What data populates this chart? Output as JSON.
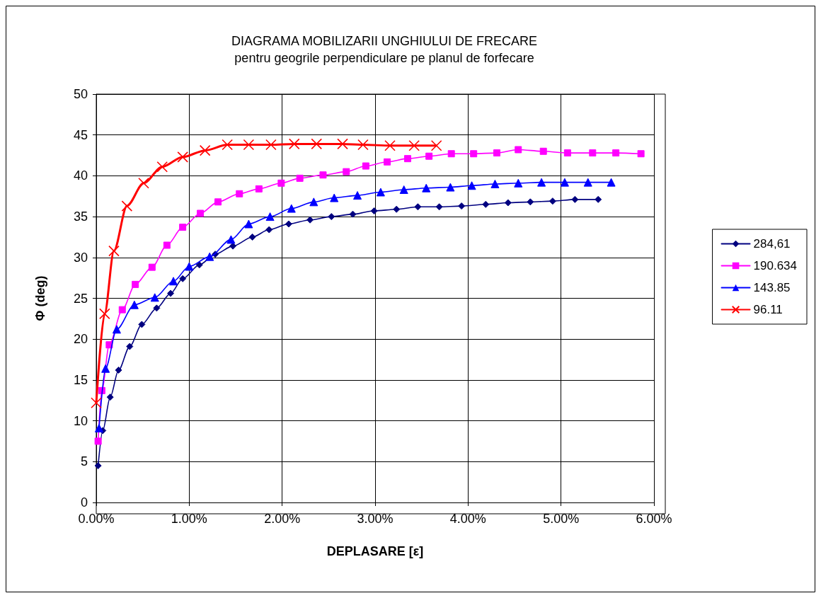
{
  "chart_data": {
    "type": "line",
    "title": "DIAGRAMA MOBILIZARII UNGHIULUI DE FRECARE",
    "subtitle": "pentru geogrile perpendiculare pe planul de forfecare",
    "xlabel": "DEPLASARE [ε]",
    "ylabel": "Φ (deg)",
    "xlim": [
      0,
      6
    ],
    "xticks": [
      {
        "value": 0,
        "label": "0.00%"
      },
      {
        "value": 1,
        "label": "1.00%"
      },
      {
        "value": 2,
        "label": "2.00%"
      },
      {
        "value": 3,
        "label": "3.00%"
      },
      {
        "value": 4,
        "label": "4.00%"
      },
      {
        "value": 5,
        "label": "5.00%"
      },
      {
        "value": 6,
        "label": "6.00%"
      }
    ],
    "ylim": [
      0,
      50
    ],
    "yticks": [
      0,
      5,
      10,
      15,
      20,
      25,
      30,
      35,
      40,
      45,
      50
    ],
    "grid": true,
    "legend": "right",
    "line_style": "solid",
    "series": [
      {
        "name": "284,61",
        "color": "#000080",
        "marker": "diamond",
        "x": [
          0.02,
          0.07,
          0.15,
          0.24,
          0.36,
          0.49,
          0.65,
          0.8,
          0.93,
          1.11,
          1.28,
          1.47,
          1.68,
          1.86,
          2.07,
          2.3,
          2.53,
          2.76,
          2.99,
          3.23,
          3.46,
          3.69,
          3.93,
          4.19,
          4.43,
          4.67,
          4.91,
          5.15,
          5.4
        ],
        "values": [
          4.5,
          8.8,
          12.9,
          16.2,
          19.1,
          21.8,
          23.8,
          25.6,
          27.4,
          29.1,
          30.4,
          31.4,
          32.5,
          33.4,
          34.1,
          34.6,
          35.0,
          35.3,
          35.7,
          35.9,
          36.2,
          36.2,
          36.3,
          36.5,
          36.7,
          36.8,
          36.9,
          37.1,
          37.1
        ]
      },
      {
        "name": "190.634",
        "color": "#ff00ff",
        "marker": "square",
        "x": [
          0.02,
          0.06,
          0.14,
          0.28,
          0.42,
          0.6,
          0.76,
          0.93,
          1.12,
          1.31,
          1.54,
          1.75,
          1.99,
          2.19,
          2.44,
          2.69,
          2.9,
          3.13,
          3.35,
          3.58,
          3.82,
          4.06,
          4.31,
          4.54,
          4.81,
          5.07,
          5.34,
          5.59,
          5.86
        ],
        "values": [
          7.5,
          13.7,
          19.3,
          23.6,
          26.7,
          28.8,
          31.5,
          33.7,
          35.4,
          36.8,
          37.8,
          38.4,
          39.1,
          39.7,
          40.1,
          40.5,
          41.2,
          41.7,
          42.1,
          42.4,
          42.7,
          42.7,
          42.8,
          43.2,
          43.0,
          42.8,
          42.8,
          42.8,
          42.7
        ]
      },
      {
        "name": "143.85",
        "color": "#0000ff",
        "marker": "triangle",
        "x": [
          0.03,
          0.1,
          0.22,
          0.41,
          0.63,
          0.83,
          1.0,
          1.22,
          1.45,
          1.64,
          1.87,
          2.1,
          2.34,
          2.56,
          2.81,
          3.06,
          3.31,
          3.55,
          3.81,
          4.04,
          4.29,
          4.54,
          4.79,
          5.04,
          5.29,
          5.54
        ],
        "values": [
          9.1,
          16.4,
          21.2,
          24.2,
          25.1,
          27.1,
          28.9,
          30.1,
          32.2,
          34.1,
          35.0,
          36.0,
          36.8,
          37.3,
          37.6,
          38.0,
          38.3,
          38.5,
          38.6,
          38.8,
          39.0,
          39.1,
          39.2,
          39.2,
          39.2,
          39.2
        ]
      },
      {
        "name": "96.11",
        "color": "#ff0000",
        "marker": "cross",
        "x": [
          0.0,
          0.09,
          0.19,
          0.33,
          0.51,
          0.71,
          0.93,
          1.17,
          1.41,
          1.64,
          1.88,
          2.13,
          2.37,
          2.65,
          2.87,
          3.16,
          3.42,
          3.66
        ],
        "values": [
          12.2,
          23.1,
          30.8,
          36.3,
          39.1,
          41.1,
          42.3,
          43.1,
          43.8,
          43.8,
          43.8,
          43.9,
          43.9,
          43.9,
          43.8,
          43.7,
          43.7,
          43.7
        ]
      }
    ]
  }
}
